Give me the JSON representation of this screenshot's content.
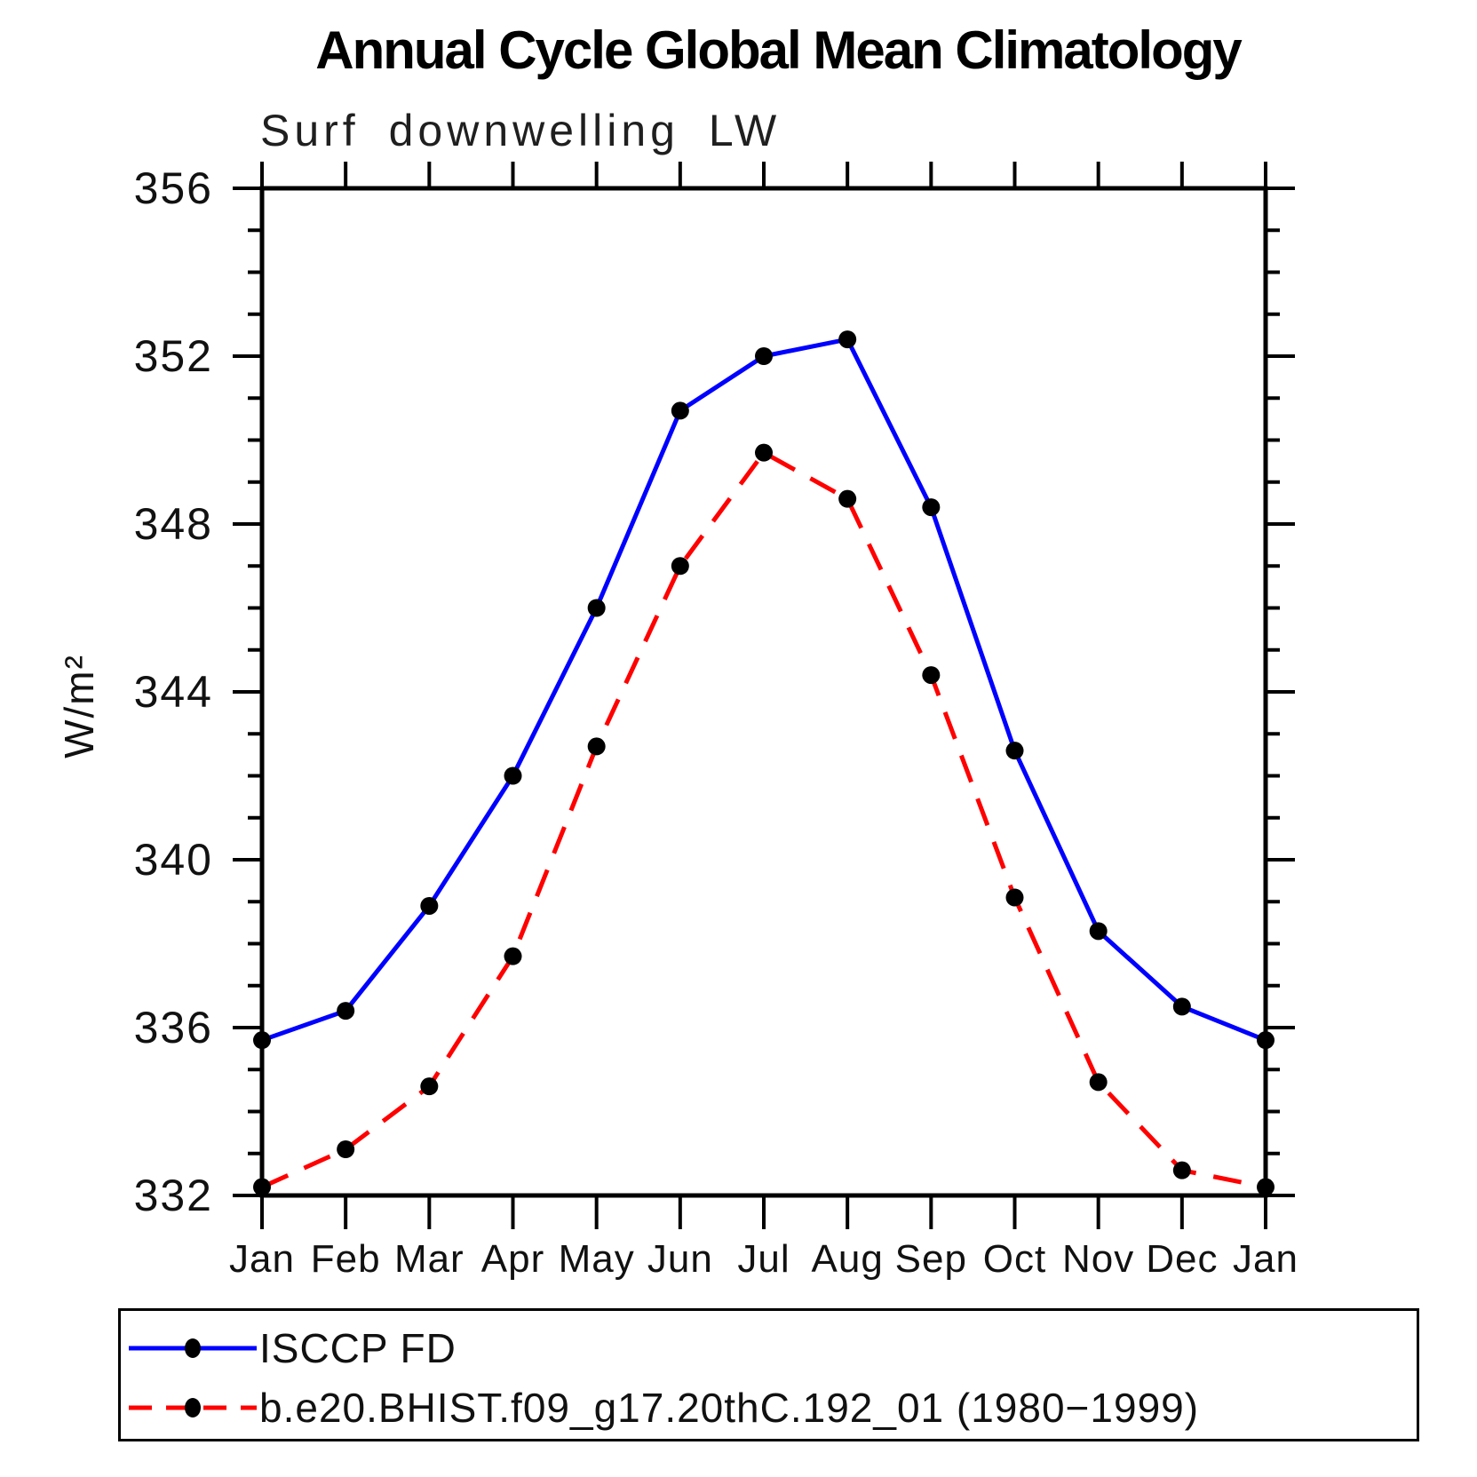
{
  "page": {
    "background": "#ffffff"
  },
  "chart_data": {
    "type": "line",
    "title": "Annual Cycle Global Mean Climatology",
    "subtitle": "Surf downwelling LW",
    "xlabel": "",
    "ylabel": "W/m²",
    "x_categories": [
      "Jan",
      "Feb",
      "Mar",
      "Apr",
      "May",
      "Jun",
      "Jul",
      "Aug",
      "Sep",
      "Oct",
      "Nov",
      "Dec",
      "Jan"
    ],
    "y_axis": {
      "min": 332,
      "max": 356,
      "major_step": 4,
      "minor_step": 1,
      "major_tick_labels": [
        "332",
        "336",
        "340",
        "344",
        "348",
        "352",
        "356"
      ]
    },
    "grid": "off",
    "axis_color": "#000000",
    "marker_color": "#000000",
    "legend_position": "bottom",
    "series": [
      {
        "name": "ISCCP FD",
        "color": "#0000ff",
        "line_style": "solid",
        "marker": "filled-circle",
        "values": [
          335.7,
          336.4,
          338.9,
          342.0,
          346.0,
          350.7,
          352.0,
          352.4,
          348.4,
          342.6,
          338.3,
          336.5,
          335.7
        ]
      },
      {
        "name": "b.e20.BHIST.f09_g17.20thC.192_01 (1980−1999)",
        "color": "#ff0000",
        "line_style": "dashed",
        "marker": "filled-circle",
        "values": [
          332.2,
          333.1,
          334.6,
          337.7,
          342.7,
          347.0,
          349.7,
          348.6,
          344.4,
          339.1,
          334.7,
          332.6,
          332.2
        ]
      }
    ]
  }
}
